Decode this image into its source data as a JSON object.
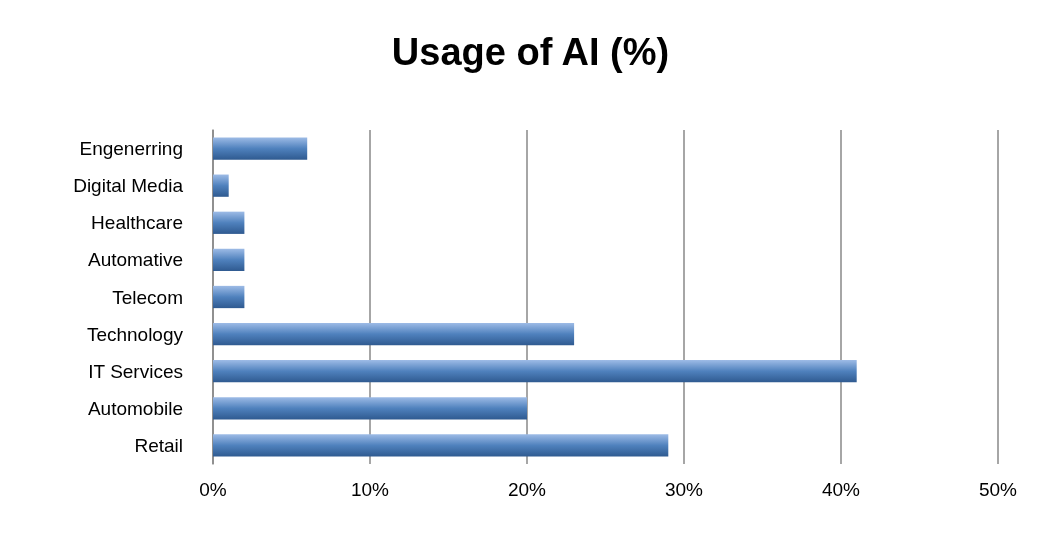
{
  "chart_data": {
    "type": "bar",
    "title": "Usage of AI (%)",
    "orientation": "horizontal",
    "categories": [
      "Engenerring",
      "Digital Media",
      "Healthcare",
      "Automative",
      "Telecom",
      "Technology",
      "IT Services",
      "Automobile",
      "Retail"
    ],
    "values": [
      6,
      1,
      2,
      2,
      2,
      23,
      41,
      20,
      29
    ],
    "color": "#4f81bd",
    "xlim": [
      0,
      50
    ],
    "xticks": [
      {
        "value": 0,
        "label": "0%"
      },
      {
        "value": 10,
        "label": "10%"
      },
      {
        "value": 20,
        "label": "20%"
      },
      {
        "value": 30,
        "label": "30%"
      },
      {
        "value": 40,
        "label": "40%"
      },
      {
        "value": 50,
        "label": "50%"
      }
    ],
    "grid": "x"
  }
}
